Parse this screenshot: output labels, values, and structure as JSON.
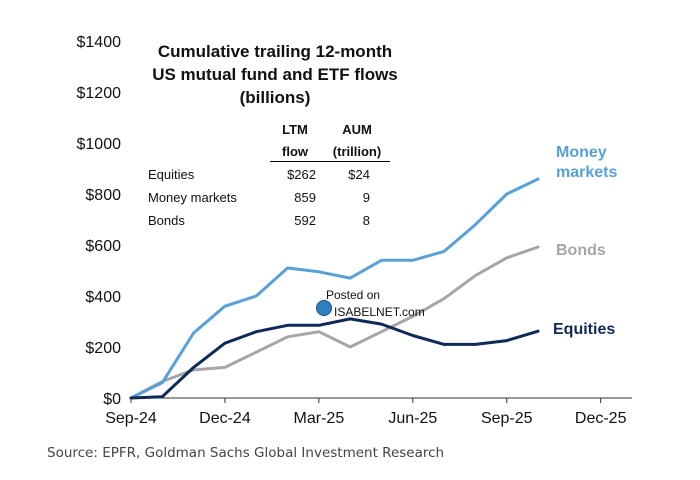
{
  "chart_data": {
    "type": "line",
    "title_lines": [
      "Cumulative trailing 12-month",
      "US  mutual fund and ETF flows",
      "(billions)"
    ],
    "x_ticks": [
      "Sep-24",
      "Dec-24",
      "Mar-25",
      "Jun-25",
      "Sep-25",
      "Dec-25"
    ],
    "x_tick_index": [
      0,
      3,
      6,
      9,
      12,
      15
    ],
    "x_range": [
      0,
      16
    ],
    "y_ticks": [
      "$0",
      "$200",
      "$400",
      "$600",
      "$800",
      "$1000",
      "$1200",
      "$1400"
    ],
    "y_tick_values": [
      0,
      200,
      400,
      600,
      800,
      1000,
      1200,
      1400
    ],
    "ylim": [
      0,
      1400
    ],
    "series": [
      {
        "name": "Money markets",
        "label_lines": [
          "Money",
          "markets"
        ],
        "color": "#5aa0d8",
        "x": [
          0,
          1,
          2,
          3,
          4,
          5,
          6,
          7,
          8,
          9,
          10,
          11,
          12,
          13
        ],
        "values": [
          0,
          60,
          255,
          360,
          400,
          510,
          495,
          470,
          540,
          540,
          575,
          680,
          800,
          859
        ]
      },
      {
        "name": "Bonds",
        "label_lines": [
          "Bonds"
        ],
        "color": "#a6a6a6",
        "x": [
          0,
          1,
          2,
          3,
          4,
          5,
          6,
          7,
          8,
          9,
          10,
          11,
          12,
          13
        ],
        "values": [
          0,
          65,
          110,
          120,
          180,
          240,
          260,
          200,
          260,
          320,
          390,
          480,
          550,
          592
        ]
      },
      {
        "name": "Equities",
        "label_lines": [
          "Equities"
        ],
        "color": "#0f2a57",
        "x": [
          0,
          1,
          2,
          3,
          4,
          5,
          6,
          7,
          8,
          9,
          10,
          11,
          12,
          13
        ],
        "values": [
          0,
          5,
          120,
          215,
          260,
          285,
          285,
          310,
          290,
          245,
          210,
          210,
          225,
          262
        ]
      }
    ]
  },
  "table": {
    "headers": [
      [
        "LTM",
        "flow"
      ],
      [
        "AUM",
        "(trillion)"
      ]
    ],
    "rows": [
      {
        "label": "Equities",
        "flow": "$262",
        "aum": "$24"
      },
      {
        "label": "Money markets",
        "flow": "859",
        "aum": "9"
      },
      {
        "label": "Bonds",
        "flow": "592",
        "aum": "8"
      }
    ]
  },
  "watermark": {
    "line1": "Posted on",
    "line2": "ISABELNET.com"
  },
  "source": "Source: EPFR, Goldman Sachs Global Investment Research"
}
